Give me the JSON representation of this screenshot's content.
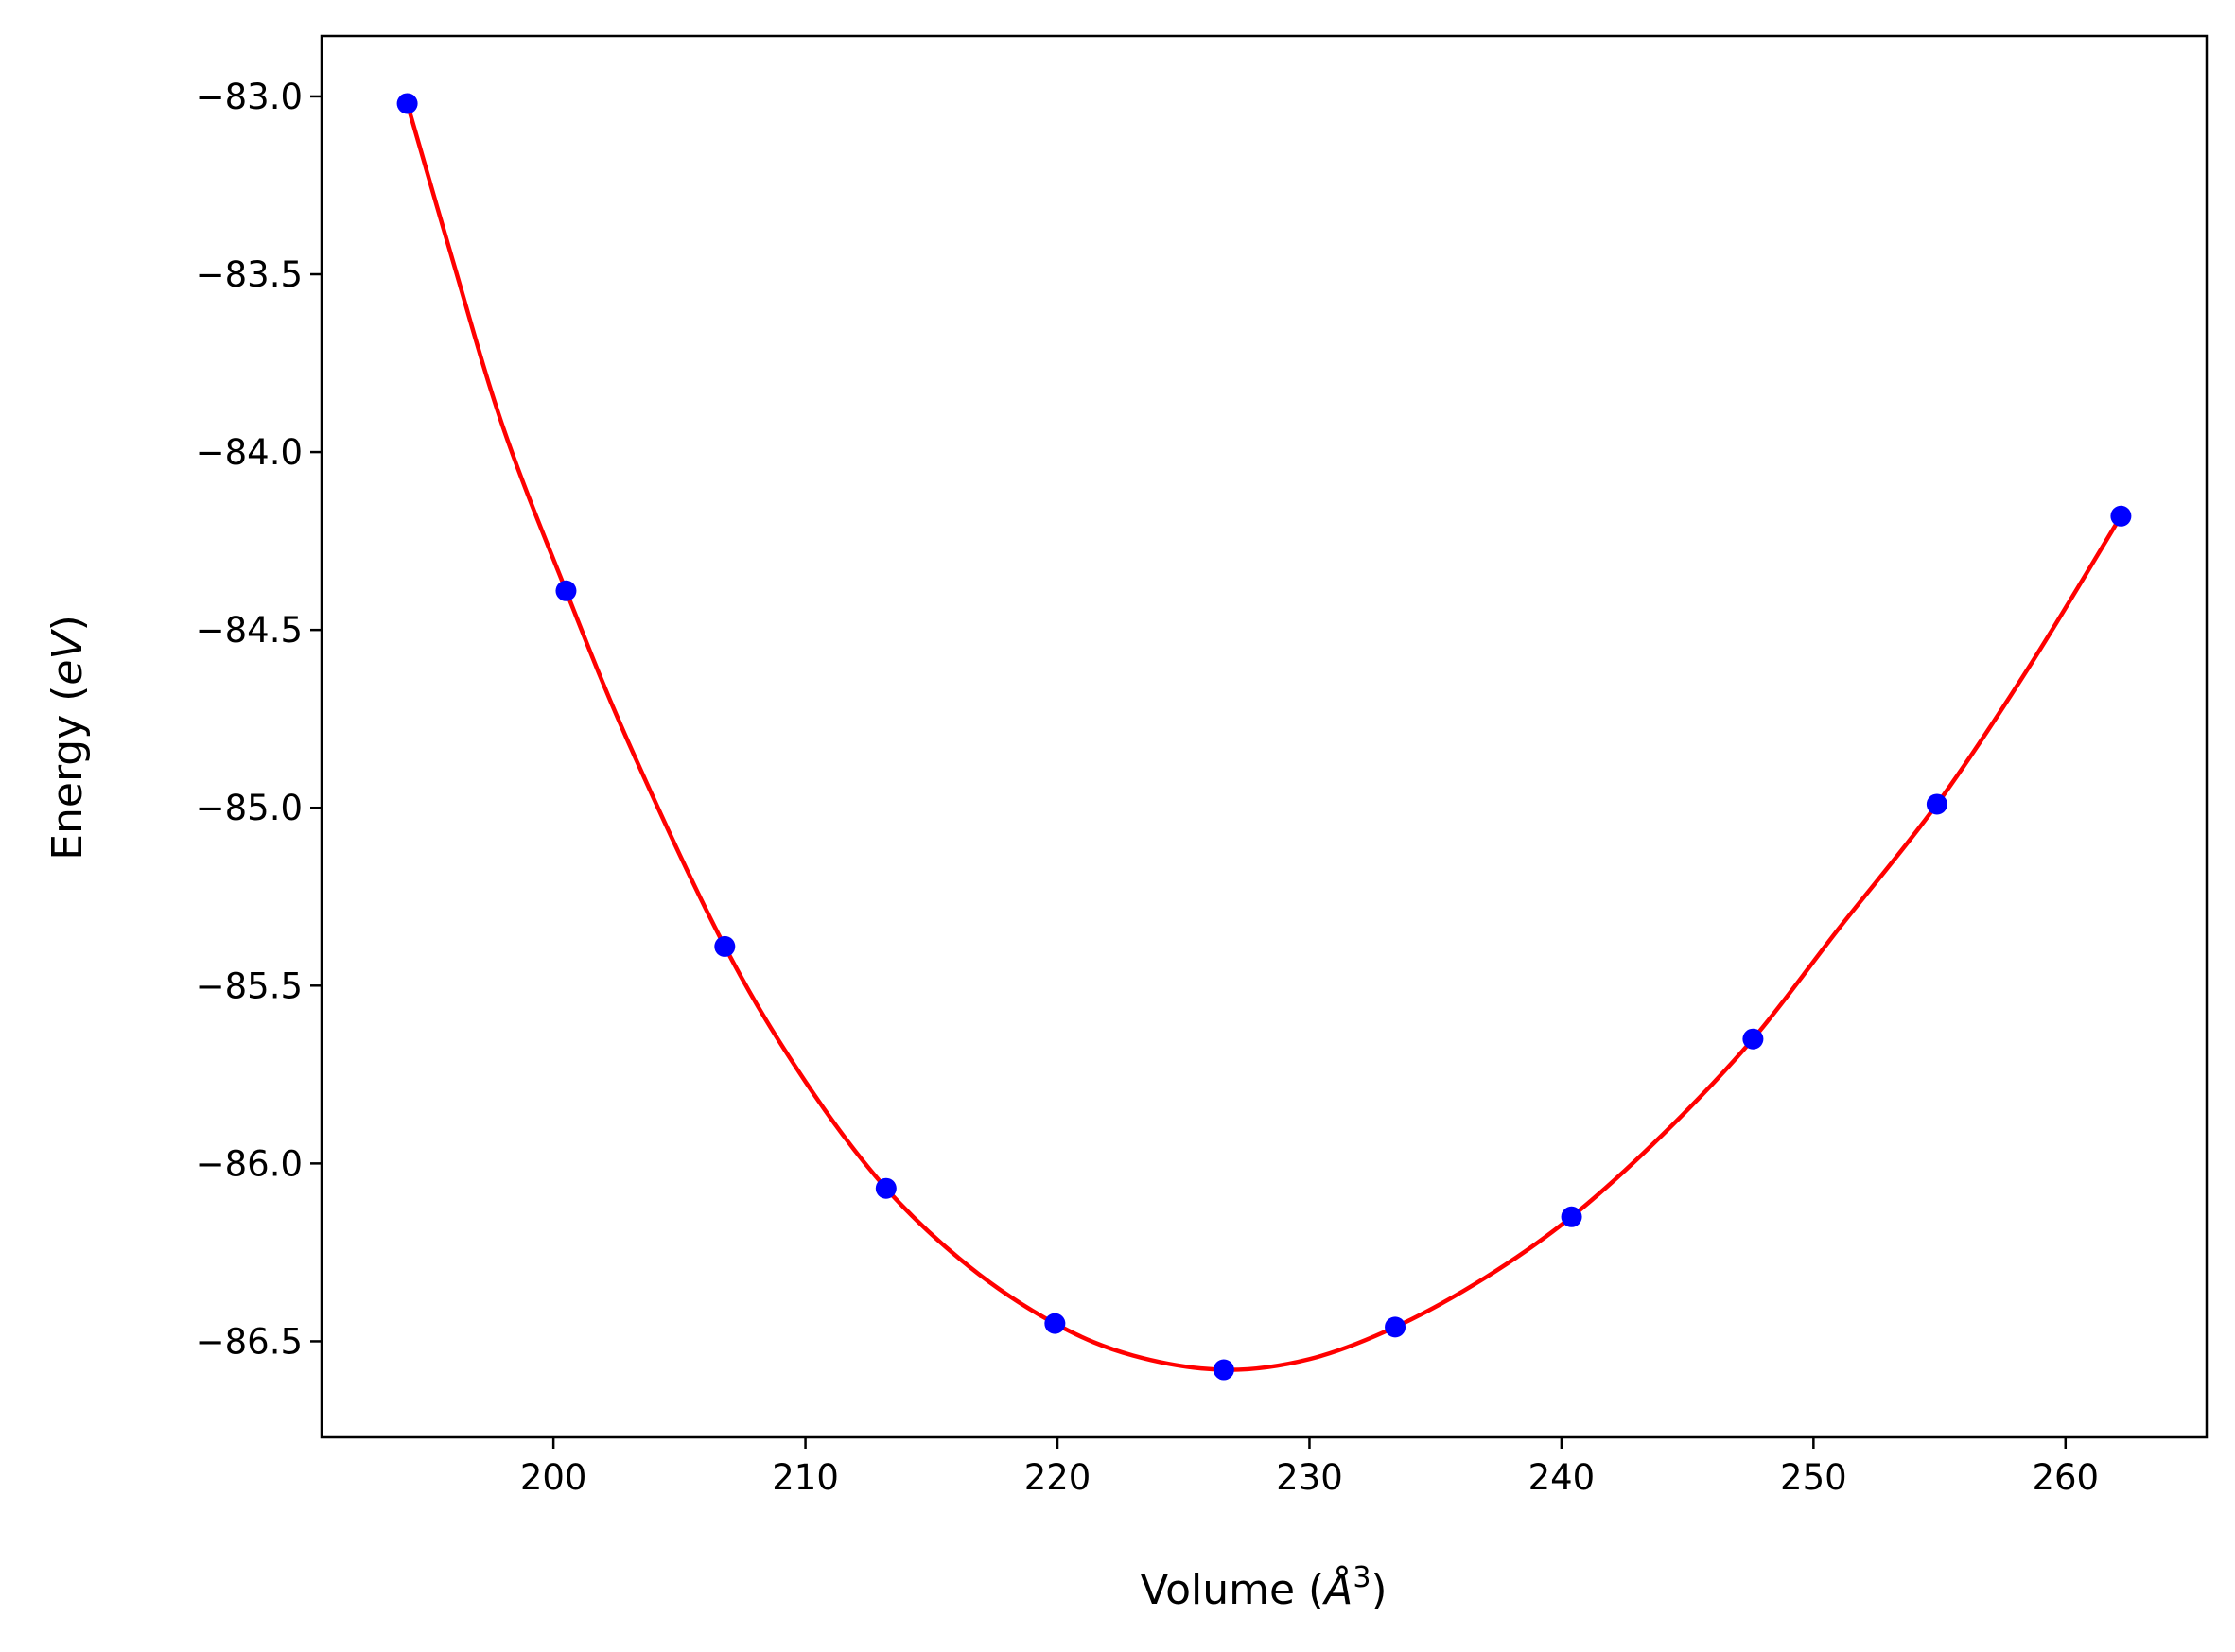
{
  "chart_data": {
    "type": "scatter",
    "title": "",
    "xlabel": "Volume (",
    "xlabel_symbol": "Å",
    "xlabel_exponent": "3",
    "xlabel_close": ")",
    "ylabel": "Energy (",
    "ylabel_unit": "eV",
    "ylabel_close": ")",
    "xlim": [
      190.8,
      265.6
    ],
    "ylim": [
      -86.77,
      -82.83
    ],
    "x_ticks": [
      200,
      210,
      220,
      230,
      240,
      250,
      260
    ],
    "y_ticks": [
      -83.0,
      -83.5,
      -84.0,
      -84.5,
      -85.0,
      -85.5,
      -86.0,
      -86.5
    ],
    "x_tick_labels": [
      "200",
      "210",
      "220",
      "230",
      "240",
      "250",
      "260"
    ],
    "y_tick_labels": [
      "−83.0",
      "−83.5",
      "−84.0",
      "−84.5",
      "−85.0",
      "−85.5",
      "−86.0",
      "−86.5"
    ],
    "grid": false,
    "series": [
      {
        "kind": "points",
        "color": "#0000ff",
        "x": [
          194.2,
          200.5,
          206.8,
          213.2,
          219.9,
          226.6,
          233.4,
          240.4,
          247.6,
          254.9,
          262.2
        ],
        "y": [
          -83.02,
          -84.39,
          -85.39,
          -86.07,
          -86.45,
          -86.58,
          -86.46,
          -86.15,
          -85.65,
          -84.99,
          -84.18
        ]
      },
      {
        "kind": "fit-curve",
        "color": "#ff0000",
        "x": [
          194.2,
          196.0,
          198.0,
          200.5,
          203.0,
          206.8,
          210.0,
          213.2,
          216.5,
          219.9,
          223.0,
          226.6,
          230.0,
          233.4,
          237.0,
          240.4,
          244.0,
          247.6,
          251.0,
          254.9,
          258.5,
          262.2
        ],
        "y": [
          -83.02,
          -83.46,
          -83.93,
          -84.39,
          -84.82,
          -85.39,
          -85.77,
          -86.07,
          -86.29,
          -86.45,
          -86.54,
          -86.58,
          -86.55,
          -86.46,
          -86.32,
          -86.15,
          -85.92,
          -85.65,
          -85.34,
          -84.99,
          -84.61,
          -84.18
        ]
      }
    ]
  }
}
